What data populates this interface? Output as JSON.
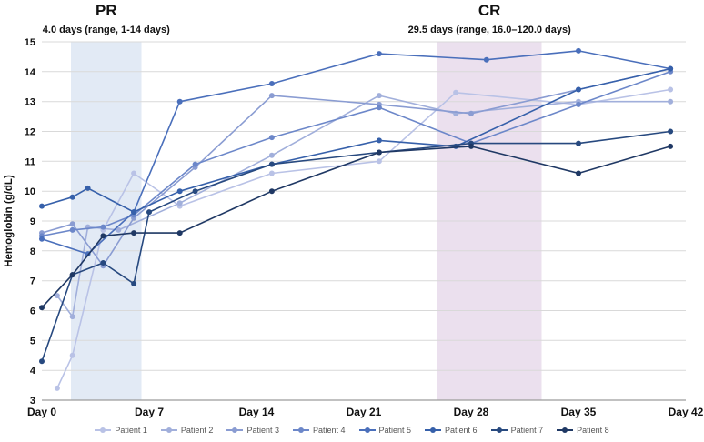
{
  "figure": {
    "y_axis_label": "Hemoglobin (g/dL)"
  },
  "chart_data": {
    "type": "line",
    "title": "",
    "xlabel": "",
    "ylabel": "Hemoglobin (g/dL)",
    "xlim": [
      0,
      42
    ],
    "ylim": [
      3,
      15
    ],
    "x_ticks": [
      0,
      7,
      14,
      21,
      28,
      35,
      42
    ],
    "x_tick_labels": [
      "Day 0",
      "Day 7",
      "Day 14",
      "Day 21",
      "Day 28",
      "Day 35",
      "Day 42"
    ],
    "y_ticks": [
      3,
      4,
      5,
      6,
      7,
      8,
      9,
      10,
      11,
      12,
      13,
      14,
      15
    ],
    "grid": "horizontal",
    "grid_color": "#d9d9d9",
    "axis_color": "#9c9c9c",
    "legend_position": "bottom",
    "bands": [
      {
        "name": "pr",
        "label": "PR",
        "sublabel": "4.0 days (range, 1-14 days)",
        "from_day": 1.9,
        "to_day": 6.5,
        "color": "#dbe5f2"
      },
      {
        "name": "cr",
        "label": "CR",
        "sublabel": "29.5 days (range, 16.0–120.0 days)",
        "from_day": 25.8,
        "to_day": 32.6,
        "color": "#e6d8ea"
      }
    ],
    "series": [
      {
        "name": "Patient 1",
        "color": "#b9c2e6",
        "points": [
          [
            1,
            3.4
          ],
          [
            2,
            4.5
          ],
          [
            4,
            8.7
          ],
          [
            6,
            10.6
          ],
          [
            9,
            9.5
          ],
          [
            15,
            10.6
          ],
          [
            22,
            11.0
          ],
          [
            27,
            13.3
          ],
          [
            35,
            12.9
          ],
          [
            41,
            13.4
          ]
        ]
      },
      {
        "name": "Patient 2",
        "color": "#a1afdb",
        "points": [
          [
            1,
            6.5
          ],
          [
            2,
            5.8
          ],
          [
            3,
            8.8
          ],
          [
            5,
            8.7
          ],
          [
            9,
            9.6
          ],
          [
            15,
            11.2
          ],
          [
            22,
            13.2
          ],
          [
            27,
            12.6
          ],
          [
            35,
            13.0
          ],
          [
            41,
            13.0
          ]
        ]
      },
      {
        "name": "Patient 3",
        "color": "#8a9cd2",
        "points": [
          [
            0,
            8.6
          ],
          [
            2,
            8.9
          ],
          [
            4,
            7.5
          ],
          [
            6,
            9.1
          ],
          [
            10,
            10.8
          ],
          [
            15,
            13.2
          ],
          [
            22,
            12.9
          ],
          [
            28,
            12.6
          ],
          [
            35,
            13.4
          ],
          [
            41,
            14.1
          ]
        ]
      },
      {
        "name": "Patient 4",
        "color": "#6c87c9",
        "points": [
          [
            0,
            8.5
          ],
          [
            2,
            8.7
          ],
          [
            4,
            8.8
          ],
          [
            6,
            9.2
          ],
          [
            10,
            10.9
          ],
          [
            15,
            11.8
          ],
          [
            22,
            12.8
          ],
          [
            28,
            11.6
          ],
          [
            35,
            12.9
          ],
          [
            41,
            14.0
          ]
        ]
      },
      {
        "name": "Patient 5",
        "color": "#4a6fbb",
        "points": [
          [
            0,
            8.4
          ],
          [
            3,
            7.9
          ],
          [
            6,
            9.3
          ],
          [
            9,
            13.0
          ],
          [
            15,
            13.6
          ],
          [
            22,
            14.6
          ],
          [
            29,
            14.4
          ],
          [
            35,
            14.7
          ],
          [
            41,
            14.1
          ]
        ]
      },
      {
        "name": "Patient 6",
        "color": "#3660aa",
        "points": [
          [
            0,
            9.5
          ],
          [
            2,
            9.8
          ],
          [
            3,
            10.1
          ],
          [
            6,
            9.3
          ],
          [
            9,
            10.0
          ],
          [
            15,
            10.9
          ],
          [
            22,
            11.7
          ],
          [
            27,
            11.5
          ],
          [
            35,
            13.4
          ],
          [
            41,
            14.1
          ]
        ]
      },
      {
        "name": "Patient 7",
        "color": "#27497f",
        "points": [
          [
            0,
            4.3
          ],
          [
            2,
            7.2
          ],
          [
            4,
            7.6
          ],
          [
            6,
            6.9
          ],
          [
            7,
            9.3
          ],
          [
            10,
            10.0
          ],
          [
            15,
            10.9
          ],
          [
            22,
            11.3
          ],
          [
            28,
            11.6
          ],
          [
            35,
            11.6
          ],
          [
            41,
            12.0
          ]
        ]
      },
      {
        "name": "Patient 8",
        "color": "#1f3864",
        "points": [
          [
            0,
            6.1
          ],
          [
            2,
            7.2
          ],
          [
            4,
            8.5
          ],
          [
            6,
            8.6
          ],
          [
            9,
            8.6
          ],
          [
            15,
            10.0
          ],
          [
            22,
            11.3
          ],
          [
            28,
            11.5
          ],
          [
            35,
            10.6
          ],
          [
            41,
            11.5
          ]
        ]
      }
    ]
  }
}
